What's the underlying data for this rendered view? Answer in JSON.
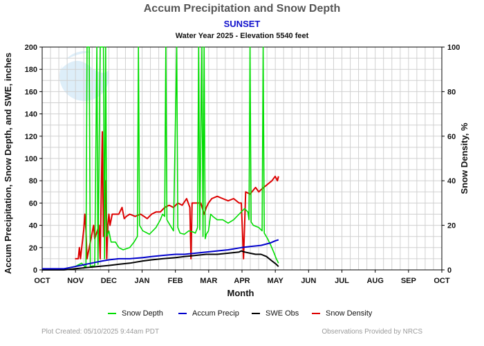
{
  "header": {
    "title": "Accum Precipitation and Snow Depth",
    "station": "SUNSET",
    "subtitle": "Water Year 2025 -  Elevation 5540 feet"
  },
  "footer": {
    "plot_created": "Plot Created: 05/10/2025 9:44am PDT",
    "provided_by": "Observations Provided by NRCS"
  },
  "colors": {
    "snow_depth": "#00dd00",
    "accum_precip": "#0000cc",
    "swe_obs": "#000000",
    "snow_density": "#dd0000",
    "grid": "#d0d0d0"
  },
  "chart_data": {
    "type": "line",
    "title": "Accum Precipitation and Snow Depth",
    "xlabel": "Month",
    "ylabel": "Accum Precipitation, Snow Depth, and SWE, inches",
    "y2label": "Snow Density, %",
    "x_ticks": [
      "OCT",
      "NOV",
      "DEC",
      "JAN",
      "FEB",
      "MAR",
      "APR",
      "MAY",
      "JUN",
      "JUL",
      "AUG",
      "SEP",
      "OCT"
    ],
    "ylim": [
      0,
      200
    ],
    "y_ticks": [
      0,
      20,
      40,
      60,
      80,
      100,
      120,
      140,
      160,
      180,
      200
    ],
    "y2lim": [
      0,
      100
    ],
    "y2_ticks": [
      0,
      20,
      40,
      60,
      80,
      100
    ],
    "grid": true,
    "legend_position": "bottom",
    "series": [
      {
        "name": "Snow Depth",
        "axis": "left",
        "points": [
          [
            0,
            1
          ],
          [
            20,
            1
          ],
          [
            30,
            3
          ],
          [
            36,
            6
          ],
          [
            40,
            2
          ],
          [
            41,
            200
          ],
          [
            43,
            200
          ],
          [
            44,
            3
          ],
          [
            48,
            4
          ],
          [
            50,
            200
          ],
          [
            51,
            5
          ],
          [
            53,
            200
          ],
          [
            56,
            200
          ],
          [
            57,
            10
          ],
          [
            58,
            200
          ],
          [
            59,
            30
          ],
          [
            61,
            35
          ],
          [
            63,
            25
          ],
          [
            67,
            25
          ],
          [
            70,
            20
          ],
          [
            74,
            18
          ],
          [
            80,
            20
          ],
          [
            84,
            25
          ],
          [
            87,
            30
          ],
          [
            88,
            200
          ],
          [
            89,
            40
          ],
          [
            92,
            35
          ],
          [
            98,
            32
          ],
          [
            104,
            38
          ],
          [
            108,
            45
          ],
          [
            110,
            50
          ],
          [
            112,
            48
          ],
          [
            113,
            200
          ],
          [
            114,
            45
          ],
          [
            117,
            40
          ],
          [
            120,
            35
          ],
          [
            123,
            200
          ],
          [
            124,
            38
          ],
          [
            126,
            33
          ],
          [
            130,
            32
          ],
          [
            134,
            35
          ],
          [
            138,
            34
          ],
          [
            140,
            33
          ],
          [
            142,
            38
          ],
          [
            143,
            200
          ],
          [
            144,
            36
          ],
          [
            146,
            200
          ],
          [
            147,
            30
          ],
          [
            148,
            200
          ],
          [
            149,
            28
          ],
          [
            150,
            32
          ],
          [
            152,
            35
          ],
          [
            154,
            50
          ],
          [
            156,
            48
          ],
          [
            160,
            45
          ],
          [
            165,
            45
          ],
          [
            170,
            42
          ],
          [
            175,
            45
          ],
          [
            180,
            50
          ],
          [
            185,
            55
          ],
          [
            188,
            52
          ],
          [
            189,
            45
          ],
          [
            190,
            200
          ],
          [
            191,
            43
          ],
          [
            193,
            40
          ],
          [
            198,
            38
          ],
          [
            201,
            35
          ],
          [
            202,
            200
          ],
          [
            203,
            33
          ],
          [
            206,
            28
          ],
          [
            209,
            22
          ],
          [
            212,
            15
          ],
          [
            214,
            10
          ],
          [
            216,
            6
          ]
        ]
      },
      {
        "name": "Accum Precip",
        "axis": "left",
        "points": [
          [
            0,
            1
          ],
          [
            10,
            1
          ],
          [
            20,
            1
          ],
          [
            25,
            2
          ],
          [
            30,
            3
          ],
          [
            35,
            4
          ],
          [
            40,
            5
          ],
          [
            45,
            6
          ],
          [
            50,
            7
          ],
          [
            55,
            8
          ],
          [
            61,
            9
          ],
          [
            70,
            10
          ],
          [
            80,
            10
          ],
          [
            92,
            11
          ],
          [
            100,
            12
          ],
          [
            110,
            13
          ],
          [
            122,
            14
          ],
          [
            130,
            14
          ],
          [
            140,
            15
          ],
          [
            150,
            16
          ],
          [
            160,
            17
          ],
          [
            170,
            18
          ],
          [
            182,
            20
          ],
          [
            190,
            21
          ],
          [
            200,
            22
          ],
          [
            208,
            24
          ],
          [
            213,
            26
          ],
          [
            216,
            27
          ]
        ]
      },
      {
        "name": "SWE Obs",
        "axis": "left",
        "points": [
          [
            0,
            0
          ],
          [
            20,
            0
          ],
          [
            30,
            1
          ],
          [
            40,
            2
          ],
          [
            50,
            3
          ],
          [
            61,
            4
          ],
          [
            70,
            5
          ],
          [
            80,
            6
          ],
          [
            92,
            8
          ],
          [
            100,
            9
          ],
          [
            110,
            10
          ],
          [
            122,
            11
          ],
          [
            130,
            12
          ],
          [
            140,
            13
          ],
          [
            150,
            14
          ],
          [
            160,
            14
          ],
          [
            170,
            15
          ],
          [
            180,
            16
          ],
          [
            182,
            17
          ],
          [
            185,
            16
          ],
          [
            190,
            15
          ],
          [
            195,
            14
          ],
          [
            200,
            14
          ],
          [
            205,
            12
          ],
          [
            210,
            8
          ],
          [
            214,
            5
          ],
          [
            216,
            3
          ]
        ]
      },
      {
        "name": "Snow Density",
        "axis": "right",
        "points": [
          [
            30,
            5
          ],
          [
            33,
            5
          ],
          [
            34,
            10
          ],
          [
            35,
            5
          ],
          [
            38,
            18
          ],
          [
            39,
            25
          ],
          [
            40,
            18
          ],
          [
            41,
            5
          ],
          [
            47,
            20
          ],
          [
            48,
            14
          ],
          [
            52,
            20
          ],
          [
            53,
            5
          ],
          [
            55,
            62
          ],
          [
            56,
            15
          ],
          [
            58,
            40
          ],
          [
            59,
            5
          ],
          [
            60,
            20
          ],
          [
            61,
            25
          ],
          [
            62,
            20
          ],
          [
            64,
            25
          ],
          [
            67,
            25
          ],
          [
            70,
            25
          ],
          [
            73,
            28
          ],
          [
            75,
            23
          ],
          [
            77,
            24
          ],
          [
            80,
            25
          ],
          [
            85,
            24
          ],
          [
            90,
            25
          ],
          [
            93,
            24
          ],
          [
            96,
            23
          ],
          [
            100,
            25
          ],
          [
            104,
            26
          ],
          [
            108,
            26
          ],
          [
            112,
            28
          ],
          [
            116,
            29
          ],
          [
            120,
            28
          ],
          [
            124,
            30
          ],
          [
            128,
            29
          ],
          [
            132,
            32
          ],
          [
            135,
            28
          ],
          [
            136,
            5
          ],
          [
            137,
            30
          ],
          [
            140,
            30
          ],
          [
            145,
            30
          ],
          [
            148,
            25
          ],
          [
            150,
            28
          ],
          [
            152,
            30
          ],
          [
            155,
            32
          ],
          [
            160,
            33
          ],
          [
            165,
            32
          ],
          [
            170,
            31
          ],
          [
            175,
            32
          ],
          [
            180,
            30
          ],
          [
            182,
            30
          ],
          [
            184,
            5
          ],
          [
            186,
            35
          ],
          [
            190,
            34
          ],
          [
            195,
            37
          ],
          [
            198,
            35
          ],
          [
            200,
            36
          ],
          [
            205,
            38
          ],
          [
            210,
            40
          ],
          [
            213,
            42
          ],
          [
            215,
            40
          ],
          [
            216,
            42
          ]
        ]
      }
    ]
  }
}
